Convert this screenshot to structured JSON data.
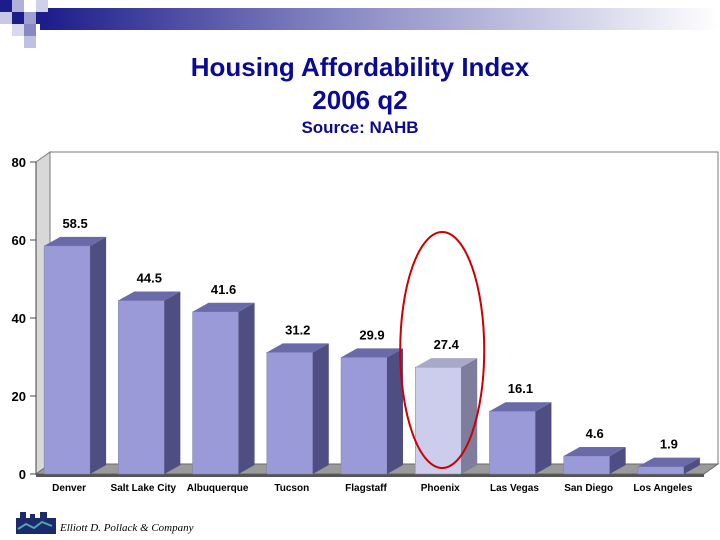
{
  "header": {
    "title_line1": "Housing Affordability Index",
    "title_line2": "2006 q2",
    "source": "Source: NAHB"
  },
  "chart_data": {
    "type": "bar",
    "title": "Housing Affordability Index 2006 q2",
    "subtitle": "Source: NAHB",
    "xlabel": "",
    "ylabel": "",
    "ylim": [
      0,
      80
    ],
    "yticks": [
      0,
      20,
      40,
      60,
      80
    ],
    "categories": [
      "Denver",
      "Salt Lake City",
      "Albuquerque",
      "Tucson",
      "Flagstaff",
      "Phoenix",
      "Las Vegas",
      "San Diego",
      "Los Angeles"
    ],
    "values": [
      58.5,
      44.5,
      41.6,
      31.2,
      29.9,
      27.4,
      16.1,
      4.6,
      1.9
    ],
    "value_labels": [
      "58.5",
      "44.5",
      "41.6",
      "31.2",
      "29.9",
      "27.4",
      "16.1",
      "4.6",
      "1.9"
    ],
    "highlight": "Phoenix",
    "colors": {
      "bar": "#9a9ad8",
      "bar_highlight": "#ccccec",
      "circle": "#cc0000"
    }
  },
  "footer": {
    "company": "Elliott D. Pollack & Company"
  }
}
